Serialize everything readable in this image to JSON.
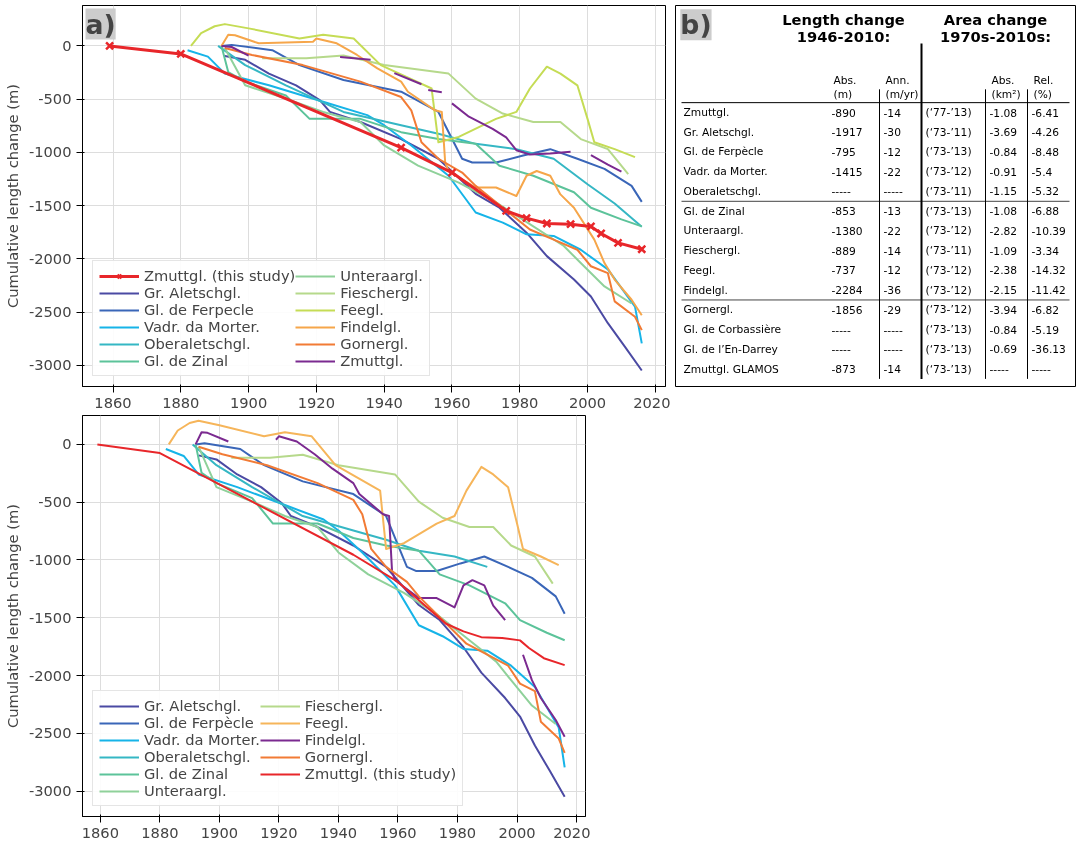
{
  "chart_data": [
    {
      "type": "line",
      "annotations": [
        "a)"
      ],
      "ylabel": "Cumulative length change (m)",
      "xlim": [
        1851,
        2023
      ],
      "ylim": [
        -3200,
        380
      ],
      "xticks": [
        1860,
        1880,
        1900,
        1920,
        1940,
        1960,
        1980,
        2000,
        2020
      ],
      "yticks": [
        0,
        -500,
        -1000,
        -1500,
        -2000,
        -2500,
        -3000
      ],
      "grid": true,
      "legend": "bottom left",
      "series": [
        {
          "name": "Zmuttgl. (this study)",
          "color": "#e8262a",
          "marker": "cross",
          "x": [
            1859,
            1880,
            1945,
            1960,
            1976,
            1982,
            1988,
            1995,
            2001,
            2004,
            2009,
            2016
          ],
          "values": [
            0,
            -75,
            -955,
            -1190,
            -1550,
            -1618,
            -1668,
            -1675,
            -1696,
            -1762,
            -1850,
            -1910
          ]
        },
        {
          "name": "Gr. Aletschgl.",
          "color": "#4b4aa3",
          "x": [
            1893,
            1899,
            1906,
            1914,
            1921,
            1924,
            1933,
            1945,
            1956,
            1967,
            1974,
            1982,
            1988,
            1996,
            2001,
            2006,
            2011,
            2016
          ],
          "values": [
            -95,
            -130,
            -260,
            -370,
            -510,
            -620,
            -715,
            -875,
            -1060,
            -1390,
            -1520,
            -1755,
            -1975,
            -2195,
            -2355,
            -2605,
            -2825,
            -3050
          ]
        },
        {
          "name": "Gl. de Ferpecle",
          "color": "#3a66b8",
          "x": [
            1892,
            1895,
            1907,
            1915,
            1928,
            1945,
            1956,
            1963,
            1966,
            1973,
            1981,
            1989,
            1997,
            2005,
            2013,
            2016
          ],
          "values": [
            0,
            10,
            -40,
            -180,
            -320,
            -430,
            -620,
            -1060,
            -1095,
            -1095,
            -1030,
            -970,
            -1060,
            -1155,
            -1315,
            -1465
          ]
        },
        {
          "name": "Vadr. da Morter.",
          "color": "#16b4e8",
          "x": [
            1882,
            1888,
            1893,
            1906,
            1922,
            1935,
            1940,
            1948,
            1959,
            1967,
            1975,
            1982,
            1990,
            1998,
            2006,
            2014,
            2016
          ],
          "values": [
            -40,
            -100,
            -260,
            -370,
            -525,
            -650,
            -745,
            -935,
            -1220,
            -1565,
            -1660,
            -1770,
            -1785,
            -1915,
            -2100,
            -2450,
            -2795
          ]
        },
        {
          "name": "Oberaletschgl.",
          "color": "#35b7c4",
          "x": [
            1891,
            1899,
            1911,
            1928,
            1945,
            1956,
            1967,
            1979,
            1990,
            2000,
            2008,
            2016
          ],
          "values": [
            0,
            -180,
            -370,
            -620,
            -745,
            -825,
            -920,
            -970,
            -1060,
            -1300,
            -1480,
            -1700
          ]
        },
        {
          "name": "Gl. de Zinal",
          "color": "#5cc39a",
          "x": [
            1892,
            1894,
            1899,
            1911,
            1918,
            1933,
            1945,
            1956,
            1967,
            1974,
            1984,
            1996,
            2001,
            2010,
            2016
          ],
          "values": [
            0,
            -245,
            -335,
            -465,
            -685,
            -685,
            -810,
            -875,
            -920,
            -1125,
            -1220,
            -1375,
            -1520,
            -1630,
            -1695
          ]
        },
        {
          "name": "Unteraargl.",
          "color": "#8fd19a",
          "x": [
            1893,
            1899,
            1911,
            1922,
            1933,
            1940,
            1950,
            1962,
            1973,
            1984,
            1993,
            1998,
            2005,
            2013
          ],
          "values": [
            -20,
            -370,
            -495,
            -620,
            -715,
            -935,
            -1125,
            -1285,
            -1470,
            -1695,
            -1880,
            -2040,
            -2260,
            -2420
          ]
        },
        {
          "name": "Fieschergl.",
          "color": "#b6d98b",
          "x": [
            1904,
            1917,
            1928,
            1940,
            1959,
            1967,
            1975,
            1984,
            1992,
            1998,
            2006,
            2012
          ],
          "values": [
            -115,
            -115,
            -90,
            -180,
            -260,
            -495,
            -635,
            -715,
            -715,
            -875,
            -970,
            -1205
          ]
        },
        {
          "name": "Feegl.",
          "color": "#c5dc55",
          "x": [
            1883,
            1886,
            1890,
            1893,
            1900,
            1915,
            1922,
            1931,
            1939,
            1954,
            1956,
            1962,
            1973,
            1979,
            1983,
            1988,
            1992,
            1997,
            2000,
            2002,
            2008,
            2014
          ],
          "values": [
            0,
            120,
            185,
            205,
            165,
            70,
            105,
            70,
            -180,
            -400,
            -905,
            -855,
            -685,
            -620,
            -400,
            -195,
            -260,
            -370,
            -685,
            -905,
            -970,
            -1045
          ]
        },
        {
          "name": "Findelgl.",
          "color": "#f6a64a",
          "x": [
            1892,
            1894,
            1896,
            1903,
            1919,
            1920,
            1926,
            1932,
            1938,
            1945,
            1947,
            1955,
            1957,
            1958,
            1959,
            1967,
            1973,
            1979,
            1982,
            1985,
            1989,
            1992,
            1996,
            2002,
            2005,
            2008,
            2013,
            2016
          ],
          "values": [
            0,
            105,
            100,
            25,
            40,
            70,
            25,
            -85,
            -210,
            -335,
            -430,
            -605,
            -620,
            -1095,
            -1175,
            -1330,
            -1330,
            -1410,
            -1220,
            -1175,
            -1220,
            -1395,
            -1520,
            -1820,
            -2040,
            -2195,
            -2385,
            -2530
          ]
        },
        {
          "name": "Gornergl.",
          "color": "#f27b35",
          "x": [
            1893,
            1901,
            1916,
            1933,
            1945,
            1948,
            1951,
            1956,
            1963,
            1967,
            1983,
            1990,
            1997,
            2001,
            2006,
            2008,
            2014,
            2016
          ],
          "values": [
            -20,
            -85,
            -180,
            -335,
            -480,
            -605,
            -905,
            -1060,
            -1190,
            -1315,
            -1725,
            -1820,
            -1915,
            -2070,
            -2135,
            -2400,
            -2545,
            -2670
          ]
        },
        {
          "name": "Zmuttgl.",
          "color": "#7b2a90",
          "x": [
            1892,
            1895,
            1900,
            1915,
            1927,
            1936,
            1940,
            1943,
            1951,
            1952,
            1953,
            1957,
            1958,
            1960,
            1965,
            1972,
            1976,
            1979,
            1983,
            1989,
            1995,
            1998,
            2001,
            2006,
            2010
          ],
          "values": [
            0,
            -10,
            -90,
            null,
            -105,
            -130,
            null,
            -255,
            -360,
            null,
            -415,
            -435,
            null,
            -540,
            -665,
            -780,
            -860,
            -980,
            -1020,
            -1010,
            -995,
            null,
            -1025,
            -1115,
            -1180
          ]
        }
      ]
    },
    {
      "type": "other",
      "annotations": [
        "b)",
        "Length change\n1946-2010:",
        "Area change\n1970s-2010s:"
      ],
      "categories": [
        "Abs.\n(m)",
        "Ann.\n(m/yr)",
        null,
        "Abs.\n(km²)",
        "Rel.\n(%)"
      ],
      "y_categories": [
        "Zmuttgl.",
        "Gr. Aletschgl.",
        "Gl. de Ferpècle",
        "Vadr. da Morter.",
        "Oberaletschgl.",
        "Gl. de Zinal",
        "Unteraargl.",
        "Fieschergl.",
        "Feegl.",
        "Findelgl.",
        "Gornergl.",
        "Gl. de Corbassière",
        "Gl. de l’En-Darrey",
        "Zmuttgl. GLAMOS"
      ],
      "cell_labels": [
        [
          "-890",
          "-14",
          "(‘77-’13)",
          "-1.08",
          "-6.41"
        ],
        [
          "-1917",
          "-30",
          "(‘73-’11)",
          "-3.69",
          "-4.26"
        ],
        [
          "-795",
          "-12",
          "(‘73-’13)",
          "-0.84",
          "-8.48"
        ],
        [
          "-1415",
          "-22",
          "(‘73-’12)",
          "-0.91",
          "-5.4"
        ],
        [
          "-----",
          "-----",
          "(‘73-’11)",
          "-1.15",
          "-5.32"
        ],
        [
          "-853",
          "-13",
          "(‘73-’13)",
          "-1.08",
          "-6.88"
        ],
        [
          "-1380",
          "-22",
          "(‘73-’12)",
          "-2.82",
          "-10.39"
        ],
        [
          "-889",
          "-14",
          "(‘73-’11)",
          "-1.09",
          "-3.34"
        ],
        [
          "-737",
          "-12",
          "(‘73-’12)",
          "-2.38",
          "-14.32"
        ],
        [
          "-2284",
          "-36",
          "(‘73-’12)",
          "-2.15",
          "-11.42"
        ],
        [
          "-1856",
          "-29",
          "(‘73-’12)",
          "-3.94",
          "-6.82"
        ],
        [
          "-----",
          "-----",
          "(‘73-’13)",
          "-0.84",
          "-5.19"
        ],
        [
          "-----",
          "-----",
          "(‘73-’13)",
          "-0.69",
          "-36.13"
        ],
        [
          "-873",
          "-14",
          "(‘73-’13)",
          "-----",
          "-----"
        ]
      ]
    },
    {
      "type": "line",
      "ylabel": "Cumulative length change (m)",
      "xlim": [
        1854,
        2023
      ],
      "ylim": [
        -3220,
        250
      ],
      "xticks": [
        1860,
        1880,
        1900,
        1920,
        1940,
        1960,
        1980,
        2000,
        2020
      ],
      "yticks": [
        0,
        -500,
        -1000,
        -1500,
        -2000,
        -2500,
        -3000
      ],
      "grid": true,
      "legend": "bottom left",
      "series": [
        {
          "name": "Gr. Aletschgl.",
          "color": "#4b4aa3",
          "x": [
            1893,
            1899,
            1906,
            1914,
            1921,
            1924,
            1933,
            1945,
            1956,
            1967,
            1974,
            1982,
            1988,
            1996,
            2001,
            2006,
            2011,
            2016
          ],
          "values": [
            -95,
            -130,
            -260,
            -370,
            -510,
            -620,
            -715,
            -875,
            -1060,
            -1390,
            -1520,
            -1755,
            -1975,
            -2195,
            -2355,
            -2605,
            -2825,
            -3050
          ]
        },
        {
          "name": "Gl. de Ferpècle",
          "color": "#3a66b8",
          "x": [
            1892,
            1895,
            1907,
            1915,
            1928,
            1945,
            1956,
            1963,
            1966,
            1973,
            1981,
            1989,
            1997,
            2005,
            2013,
            2016
          ],
          "values": [
            0,
            10,
            -40,
            -180,
            -320,
            -430,
            -620,
            -1060,
            -1095,
            -1095,
            -1030,
            -970,
            -1060,
            -1155,
            -1315,
            -1465
          ]
        },
        {
          "name": "Vadr. da Morter.",
          "color": "#16b4e8",
          "x": [
            1882,
            1888,
            1893,
            1906,
            1922,
            1935,
            1940,
            1948,
            1959,
            1967,
            1975,
            1982,
            1990,
            1998,
            2006,
            2014,
            2016
          ],
          "values": [
            -40,
            -100,
            -260,
            -370,
            -525,
            -650,
            -745,
            -935,
            -1220,
            -1565,
            -1660,
            -1770,
            -1785,
            -1915,
            -2100,
            -2450,
            -2795
          ]
        },
        {
          "name": "Oberaletschgl.",
          "color": "#35b7c4",
          "x": [
            1891,
            1899,
            1911,
            1928,
            1945,
            1956,
            1967,
            1979,
            1990
          ],
          "values": [
            0,
            -180,
            -370,
            -620,
            -745,
            -825,
            -920,
            -970,
            -1060
          ]
        },
        {
          "name": "Gl. de Zinal",
          "color": "#5cc39a",
          "x": [
            1892,
            1894,
            1899,
            1911,
            1918,
            1933,
            1945,
            1956,
            1967,
            1974,
            1984,
            1996,
            2001,
            2010,
            2016
          ],
          "values": [
            0,
            -245,
            -335,
            -465,
            -685,
            -685,
            -810,
            -875,
            -920,
            -1125,
            -1220,
            -1375,
            -1520,
            -1630,
            -1695
          ]
        },
        {
          "name": "Unteraargl.",
          "color": "#8fd19a",
          "x": [
            1893,
            1899,
            1911,
            1922,
            1933,
            1940,
            1950,
            1962,
            1973,
            1984,
            1993,
            1998,
            2005,
            2013
          ],
          "values": [
            -20,
            -370,
            -495,
            -620,
            -715,
            -935,
            -1125,
            -1285,
            -1470,
            -1695,
            -1880,
            -2040,
            -2260,
            -2420
          ]
        },
        {
          "name": "Fieschergl.",
          "color": "#b6d98b",
          "x": [
            1904,
            1917,
            1928,
            1940,
            1959,
            1967,
            1975,
            1984,
            1992,
            1998,
            2006,
            2012
          ],
          "values": [
            -115,
            -115,
            -90,
            -180,
            -260,
            -495,
            -635,
            -715,
            -715,
            -875,
            -970,
            -1205
          ]
        },
        {
          "name": "Feegl.",
          "color": "#f6b55a",
          "x": [
            1883,
            1886,
            1890,
            1893,
            1900,
            1915,
            1922,
            1931,
            1939,
            1954,
            1956,
            1962,
            1973,
            1979,
            1983,
            1988,
            1992,
            1997,
            2000,
            2002,
            2008,
            2014
          ],
          "values": [
            0,
            120,
            185,
            205,
            165,
            70,
            105,
            70,
            -180,
            -400,
            -905,
            -855,
            -685,
            -620,
            -400,
            -195,
            -260,
            -370,
            -685,
            -905,
            -970,
            -1045
          ]
        },
        {
          "name": "Findelgl.",
          "color": "#7b2a90",
          "x": [
            1892,
            1894,
            1896,
            1903,
            1912,
            1919,
            1920,
            1926,
            1932,
            1938,
            1945,
            1947,
            1955,
            1957,
            1958,
            1959,
            1967,
            1973,
            1979,
            1982,
            1985,
            1989,
            1992,
            1996,
            1999,
            2002,
            2005,
            2008,
            2013,
            2016
          ],
          "values": [
            0,
            105,
            100,
            25,
            null,
            40,
            70,
            25,
            -85,
            -210,
            -335,
            -430,
            -605,
            -620,
            -1095,
            -1175,
            -1330,
            -1330,
            -1410,
            -1220,
            -1175,
            -1220,
            -1395,
            -1520,
            null,
            -1820,
            -2040,
            -2195,
            -2385,
            -2530
          ]
        },
        {
          "name": "Gornergl.",
          "color": "#f27b35",
          "x": [
            1893,
            1901,
            1916,
            1933,
            1945,
            1948,
            1951,
            1956,
            1963,
            1967,
            1983,
            1990,
            1997,
            2001,
            2006,
            2008,
            2014,
            2016
          ],
          "values": [
            -20,
            -85,
            -180,
            -335,
            -480,
            -605,
            -905,
            -1060,
            -1190,
            -1315,
            -1725,
            -1820,
            -1915,
            -2070,
            -2135,
            -2400,
            -2545,
            -2670
          ]
        },
        {
          "name": "Zmuttgl. (this study)",
          "color": "#e8262a",
          "x": [
            1859,
            1880,
            1945,
            1960,
            1976,
            1982,
            1988,
            1995,
            2001,
            2004,
            2009,
            2016
          ],
          "values": [
            0,
            -75,
            -955,
            -1190,
            -1550,
            -1618,
            -1668,
            -1675,
            -1696,
            -1762,
            -1850,
            -1910
          ]
        }
      ]
    }
  ]
}
